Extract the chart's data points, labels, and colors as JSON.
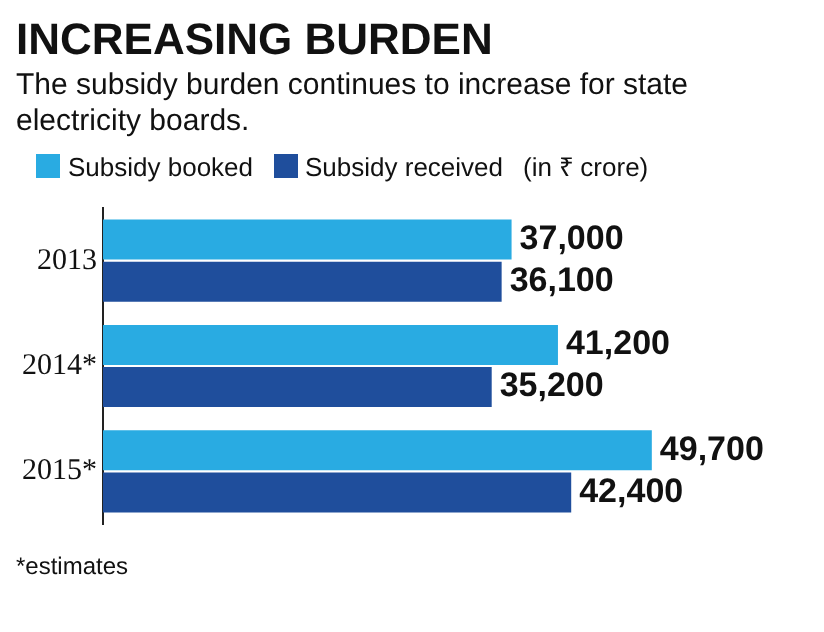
{
  "chart_data": {
    "type": "bar",
    "orientation": "horizontal",
    "title": "INCREASING BURDEN",
    "subtitle": "The subsidy burden continues to increase for state electricity boards.",
    "categories": [
      "2013",
      "2014*",
      "2015*"
    ],
    "series": [
      {
        "name": "Subsidy booked",
        "color": "#29abe2",
        "values": [
          37000,
          41200,
          49700
        ],
        "value_labels": [
          "37,000",
          "41,200",
          "49,700"
        ]
      },
      {
        "name": "Subsidy received",
        "color": "#1f4e9c",
        "values": [
          36100,
          35200,
          42400
        ],
        "value_labels": [
          "36,100",
          "35,200",
          "42,400"
        ]
      }
    ],
    "legend": "top left",
    "grid": false,
    "annotations": [
      "(in ₹ crore)",
      "*estimates"
    ]
  }
}
